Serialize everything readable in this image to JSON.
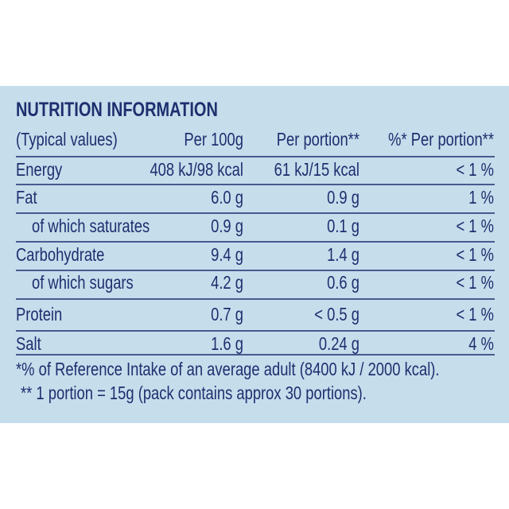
{
  "title": "NUTRITION INFORMATION",
  "table": {
    "headers": [
      "(Typical values)",
      "Per 100g",
      "Per portion**",
      "%* Per portion**"
    ],
    "rows": [
      [
        "Energy",
        "408 kJ/98 kcal",
        "61 kJ/15 kcal",
        "< 1 %"
      ],
      [
        "Fat",
        "6.0 g",
        "0.9 g",
        "1 %"
      ],
      [
        "of which saturates",
        "0.9 g",
        "0.1 g",
        "< 1 %"
      ],
      [
        "Carbohydrate",
        "9.4 g",
        "1.4 g",
        "< 1 %"
      ],
      [
        "of which sugars",
        "4.2 g",
        "0.6 g",
        "< 1 %"
      ],
      [
        "Protein",
        "0.7 g",
        "< 0.5 g",
        "< 1 %"
      ],
      [
        "Salt",
        "1.6 g",
        "0.24 g",
        "4 %"
      ]
    ]
  },
  "footnotes": [
    "*% of Reference Intake of an average adult (8400 kJ / 2000 kcal).",
    "** 1 portion = 15g (pack contains approx 30 portions)."
  ]
}
